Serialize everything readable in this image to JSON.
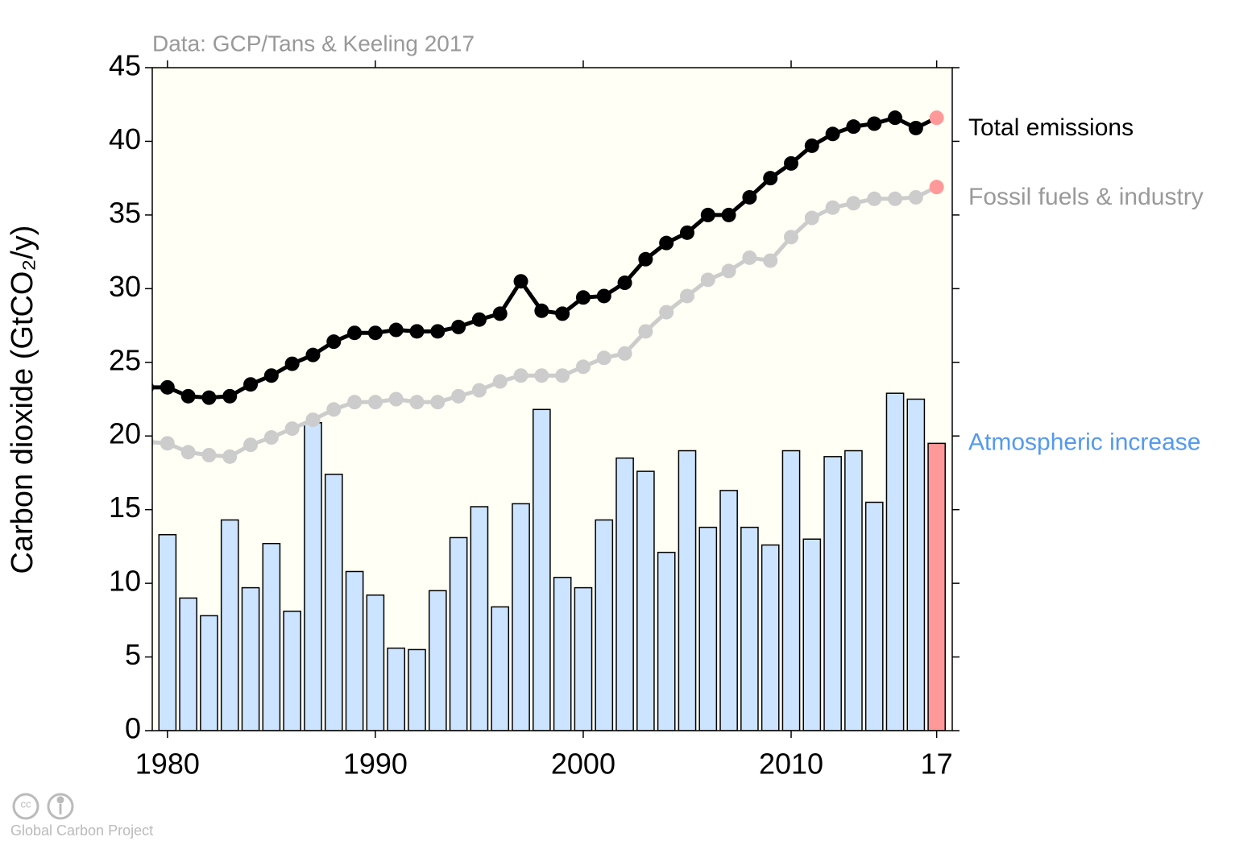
{
  "chart_data": {
    "type": "combo",
    "source": "Data: GCP/Tans & Keeling 2017",
    "ylabel": "Carbon dioxide (GtCO₂/y)",
    "credit": "Global Carbon Project",
    "x": [
      1979,
      1980,
      1981,
      1982,
      1983,
      1984,
      1985,
      1986,
      1987,
      1988,
      1989,
      1990,
      1991,
      1992,
      1993,
      1994,
      1995,
      1996,
      1997,
      1998,
      1999,
      2000,
      2001,
      2002,
      2003,
      2004,
      2005,
      2006,
      2007,
      2008,
      2009,
      2010,
      2011,
      2012,
      2013,
      2014,
      2015,
      2016,
      2017
    ],
    "series": [
      {
        "name": "Total emissions",
        "type": "line",
        "color": "#000000",
        "label_color": "#000000",
        "values": [
          23.3,
          23.3,
          22.7,
          22.6,
          22.7,
          23.5,
          24.1,
          24.9,
          25.5,
          26.4,
          27.0,
          27.0,
          27.2,
          27.1,
          27.1,
          27.4,
          27.9,
          28.3,
          30.5,
          28.5,
          28.3,
          29.4,
          29.5,
          30.4,
          32.0,
          33.1,
          33.8,
          35.0,
          35.0,
          36.2,
          37.5,
          38.5,
          39.7,
          40.5,
          41.0,
          41.2,
          41.6,
          40.9,
          41.6
        ]
      },
      {
        "name": "Fossil fuels & industry",
        "type": "line",
        "color": "#cccccc",
        "label_color": "#999999",
        "values": [
          19.6,
          19.5,
          18.9,
          18.7,
          18.6,
          19.4,
          19.9,
          20.5,
          21.1,
          21.8,
          22.3,
          22.3,
          22.5,
          22.3,
          22.3,
          22.7,
          23.1,
          23.7,
          24.1,
          24.1,
          24.1,
          24.7,
          25.3,
          25.6,
          27.1,
          28.4,
          29.5,
          30.6,
          31.2,
          32.1,
          31.9,
          33.5,
          34.8,
          35.5,
          35.8,
          36.1,
          36.1,
          36.2,
          36.9
        ]
      },
      {
        "name": "Atmospheric increase",
        "type": "bar",
        "color": "#cce4ff",
        "label_color": "#5599ee",
        "values": [
          null,
          13.3,
          9.0,
          7.8,
          14.3,
          9.7,
          12.7,
          8.1,
          20.9,
          17.4,
          10.8,
          9.2,
          5.6,
          5.5,
          9.5,
          13.1,
          15.2,
          8.4,
          15.4,
          21.8,
          10.4,
          9.7,
          14.3,
          18.5,
          17.6,
          12.1,
          19.0,
          13.8,
          16.3,
          13.8,
          12.6,
          19.0,
          13.0,
          18.6,
          19.0,
          15.5,
          22.9,
          22.5,
          19.5
        ]
      }
    ],
    "highlight_color": "#ff9999",
    "xlim": [
      1979.27,
      2017.75
    ],
    "xticks": [
      1980,
      1990,
      2000,
      2010,
      {
        "value": 2017,
        "label": "17"
      }
    ],
    "ylim": [
      0,
      45
    ],
    "yticks": [
      0,
      5,
      10,
      15,
      20,
      25,
      30,
      35,
      40,
      45
    ],
    "plot_background": "#fffff5"
  }
}
